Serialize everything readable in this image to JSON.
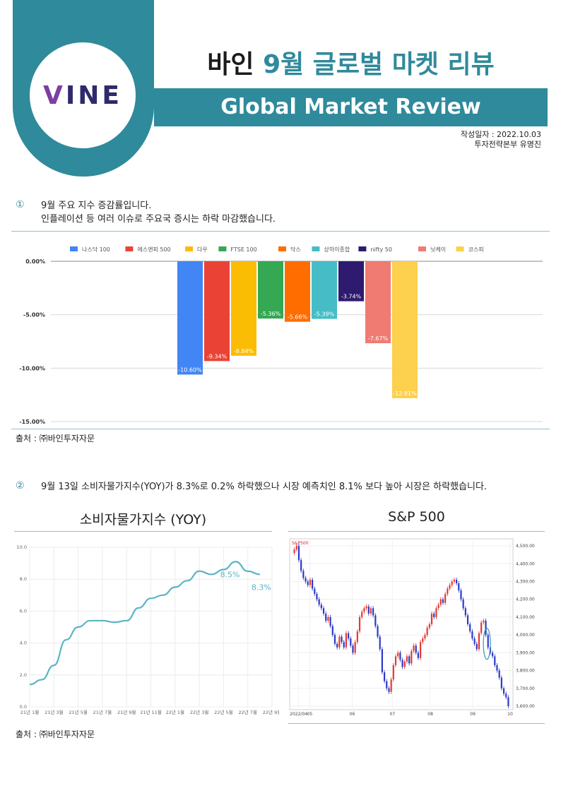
{
  "header": {
    "logo": "VINE",
    "title_part1": "바인",
    "title_part2": "9월 글로벌 마켓 리뷰",
    "subtitle": "Global Market Review",
    "date": "작성일자 : 2022.10.03",
    "author": "투자전략본부 유명진"
  },
  "section1": {
    "num": "①",
    "line1": "9월 주요 지수 증감률입니다.",
    "line2": "인플레이션 등 여러 이슈로 주요국 증시는 하락 마감했습니다.",
    "source": "출처 : ㈜바인투자자문"
  },
  "section2": {
    "num": "②",
    "text": "9월 13일 소비자물가지수(YOY)가 8.3%로 0.2% 하락했으나 시장 예측치인 8.1% 보다 높아 시장은 하락했습니다.",
    "left_title": "소비자물가지수  (YOY)",
    "right_title": "S&P 500",
    "source": "출처 : ㈜바인투자자문"
  },
  "chart_data": [
    {
      "type": "bar",
      "title": "",
      "categories": [
        "나스닥 100",
        "에스앤피 500",
        "다우",
        "FTSE 100",
        "닥스",
        "상하이종합",
        "nifty 50",
        "닛케이",
        "코스피"
      ],
      "values": [
        -10.6,
        -9.34,
        -8.84,
        -5.36,
        -5.66,
        -5.39,
        -3.74,
        -7.67,
        -12.81
      ],
      "value_labels": [
        "-10.60%",
        "-9.34%",
        "-8.84%",
        "-5.36%",
        "-5.66%",
        "-5.39%",
        "-3.74%",
        "-7.67%",
        "-12.81%"
      ],
      "colors": [
        "#4285f4",
        "#ea4335",
        "#fbbc04",
        "#34a853",
        "#ff6d01",
        "#46bdc6",
        "#2e1a6e",
        "#f07b72",
        "#fdd04d"
      ],
      "yticks": [
        "0.00%",
        "-5.00%",
        "-10.00%",
        "-15.00%"
      ],
      "ylim": [
        -15,
        0
      ],
      "legend": "top"
    },
    {
      "type": "line",
      "title": "소비자물가지수  (YOY)",
      "x": [
        "21년 1월",
        "21년 2월",
        "21년 3월",
        "21년 4월",
        "21년 5월",
        "21년 6월",
        "21년 7월",
        "21년 8월",
        "21년 9월",
        "21년 10월",
        "21년 11월",
        "21년 12월",
        "22년 1월",
        "22년 2월",
        "22년 3월",
        "22년 4월",
        "22년 5월",
        "22년 6월",
        "22년 7월",
        "22년 8월"
      ],
      "values": [
        1.4,
        1.7,
        2.6,
        4.2,
        5.0,
        5.4,
        5.4,
        5.3,
        5.4,
        6.2,
        6.8,
        7.0,
        7.5,
        7.9,
        8.5,
        8.3,
        8.6,
        9.1,
        8.5,
        8.3
      ],
      "xtick_labels": [
        "21년 1월",
        "21년 3월",
        "21년 5월",
        "21년 7월",
        "21년 9월",
        "21년 11월",
        "22년 1월",
        "22년 3월",
        "22년 5월",
        "22년 7월",
        "22년 9월"
      ],
      "yticks": [
        "0.0",
        "2.0",
        "4.0",
        "6.0",
        "8.0",
        "10.0"
      ],
      "ylim": [
        0,
        10
      ],
      "annotations": [
        "8.5%",
        "8.3%"
      ],
      "color": "#5ab5c3"
    },
    {
      "type": "candlestick",
      "title": "S&P 500",
      "legend_label": "S&P500",
      "yticks": [
        "4,500.00",
        "4,400.00",
        "4,300.00",
        "4,200.00",
        "4,100.00",
        "4,000.00",
        "3,900.00",
        "3,800.00",
        "3,700.00",
        "3,600.00"
      ],
      "ylim": [
        3580,
        4540
      ],
      "xticks": [
        "2022/04",
        "05",
        "06",
        "07",
        "08",
        "09",
        "10"
      ],
      "closes": [
        4480,
        4500,
        4420,
        4360,
        4320,
        4300,
        4280,
        4310,
        4260,
        4230,
        4200,
        4170,
        4150,
        4120,
        4080,
        4100,
        4050,
        4000,
        3950,
        3930,
        3990,
        3960,
        3930,
        4010,
        3980,
        3940,
        3900,
        3960,
        4020,
        4100,
        4130,
        4150,
        4160,
        4120,
        4150,
        4110,
        4050,
        3990,
        3920,
        3790,
        3740,
        3700,
        3680,
        3750,
        3830,
        3880,
        3900,
        3860,
        3820,
        3850,
        3880,
        3840,
        3910,
        3940,
        3900,
        3870,
        3960,
        3980,
        4000,
        4040,
        4060,
        4120,
        4100,
        4150,
        4170,
        4200,
        4180,
        4230,
        4260,
        4280,
        4300,
        4310,
        4290,
        4250,
        4200,
        4150,
        4110,
        4060,
        4020,
        3980,
        3950,
        3920,
        4010,
        4070,
        4080,
        4000,
        3930,
        3900,
        3880,
        3830,
        3800,
        3760,
        3700,
        3670,
        3650,
        3600
      ],
      "annotation": "ellipse"
    }
  ]
}
